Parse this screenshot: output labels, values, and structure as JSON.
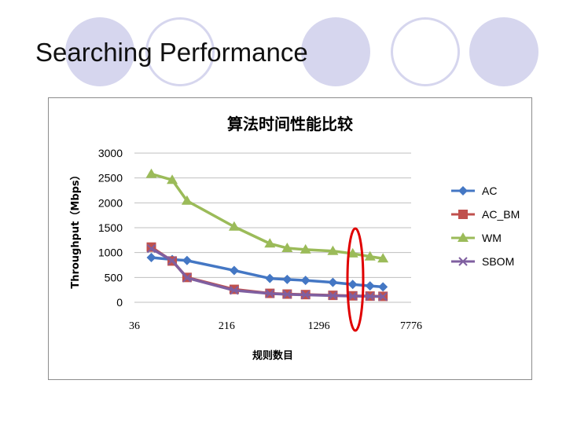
{
  "slide": {
    "title": "Searching Performance"
  },
  "colors": {
    "decor": "#d6d6ee",
    "highlight": "#e00000"
  },
  "chart_data": {
    "type": "line",
    "title": "算法时间性能比较",
    "xlabel": "规则数目",
    "ylabel": "Throughput（Mbps）",
    "ylim": [
      0,
      3000
    ],
    "yticks": [
      "0",
      "500",
      "1000",
      "1500",
      "2000",
      "2500",
      "3000"
    ],
    "xscale": "log",
    "xticks": [
      "36",
      "216",
      "1296",
      "7776"
    ],
    "xlim": [
      36,
      7776
    ],
    "x": [
      50,
      75,
      100,
      250,
      500,
      700,
      1000,
      1700,
      2500,
      3500,
      4500
    ],
    "legend_position": "right",
    "grid": true,
    "series": [
      {
        "name": "AC",
        "color": "#4477c4",
        "marker": "diamond",
        "values": [
          900,
          860,
          840,
          640,
          480,
          460,
          440,
          400,
          360,
          330,
          310
        ]
      },
      {
        "name": "AC_BM",
        "color": "#c0504d",
        "marker": "square",
        "values": [
          1110,
          830,
          500,
          260,
          180,
          165,
          155,
          140,
          130,
          125,
          120
        ]
      },
      {
        "name": "WM",
        "color": "#9bbb59",
        "marker": "triangle",
        "values": [
          2580,
          2460,
          2040,
          1520,
          1180,
          1090,
          1060,
          1030,
          980,
          920,
          880
        ]
      },
      {
        "name": "SBOM",
        "color": "#7f5fa0",
        "marker": "x",
        "values": [
          1080,
          840,
          490,
          240,
          175,
          160,
          150,
          135,
          125,
          120,
          115
        ]
      }
    ]
  }
}
